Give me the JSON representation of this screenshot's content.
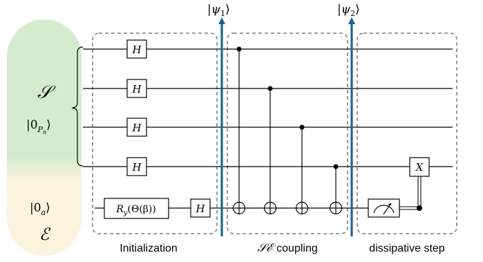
{
  "register_labels": {
    "system": {
      "symbol": "𝒮",
      "state": "|0",
      "state_sub": "P",
      "state_subsub": "n",
      "state_close": "⟩"
    },
    "ancilla": {
      "state": "|0",
      "state_sub": "a",
      "state_close": "⟩",
      "symbol": "ℰ"
    }
  },
  "markers": [
    {
      "text": "|ψ",
      "sub": "1",
      "close": "⟩"
    },
    {
      "text": "|ψ",
      "sub": "2",
      "close": "⟩"
    }
  ],
  "gates": {
    "hadamard": "H",
    "rotation": "R",
    "rotation_sub": "y",
    "rotation_arg": "(Θ(β))",
    "pauli_x": "X"
  },
  "section_labels": {
    "initialization": "Initialization",
    "coupling_symbols": "𝒮ℰ",
    "coupling_word": "coupling",
    "dissipative": "dissipative step"
  },
  "colors": {
    "system_bg": "#d5ebcd",
    "ancilla_bg": "#fbf3de",
    "marker": "#1f6392",
    "box_border": "#8e8e8e",
    "wire": "#000000"
  }
}
